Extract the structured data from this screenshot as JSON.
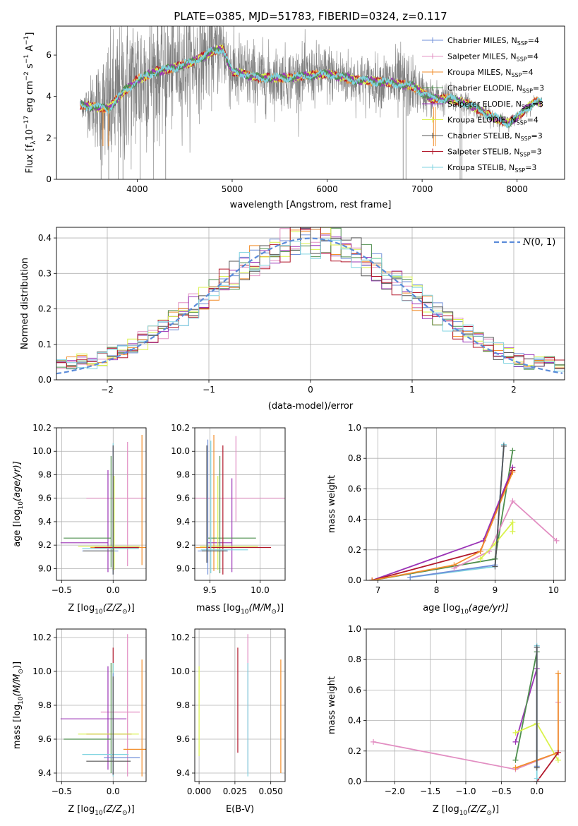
{
  "figure_title": "PLATE=0385, MJD=51783, FIBERID=0324, z=0.117",
  "colors": {
    "Chabrier MILES": "#6f8fd8",
    "Salpeter MILES": "#e28ec2",
    "Kroupa MILES": "#f28e2b",
    "Chabrier ELODIE": "#4e8f4e",
    "Salpeter ELODIE": "#9b34b6",
    "Kroupa ELODIE": "#d9f24a",
    "Chabrier STELIB": "#555555",
    "Salpeter STELIB": "#b2182b",
    "Kroupa STELIB": "#7fd3e0",
    "data": "#808080",
    "normal": "#5b8bd9"
  },
  "chart_data": [
    {
      "id": "spectrum",
      "type": "line",
      "title": "PLATE=0385, MJD=51783, FIBERID=0324, z=0.117",
      "xlabel": "wavelength [Angstrom, rest frame]",
      "ylabel": "Flux [f",
      "ylabel_parts": [
        "Flux [f",
        "λ",
        "10",
        "−17",
        " erg cm",
        "−2",
        " s",
        "−1",
        " A",
        "−1",
        "]"
      ],
      "xlim": [
        3150,
        8500
      ],
      "ylim": [
        0,
        7.4
      ],
      "xticks": [
        4000,
        5000,
        6000,
        7000,
        8000
      ],
      "yticks": [
        0,
        2,
        4,
        6
      ],
      "grid": false,
      "legend_position": "top-right",
      "data_series": {
        "name": "",
        "continuum": [
          [
            3400,
            3.6
          ],
          [
            3550,
            3.5
          ],
          [
            3700,
            3.4
          ],
          [
            3850,
            4.2
          ],
          [
            4000,
            4.8
          ],
          [
            4200,
            5.2
          ],
          [
            4400,
            5.4
          ],
          [
            4600,
            5.7
          ],
          [
            4800,
            6.2
          ],
          [
            4900,
            6.3
          ],
          [
            5000,
            5.2
          ],
          [
            5300,
            4.9
          ],
          [
            5600,
            4.9
          ],
          [
            6000,
            5.1
          ],
          [
            6300,
            4.8
          ],
          [
            6600,
            4.7
          ],
          [
            6900,
            4.5
          ],
          [
            7100,
            3.9
          ],
          [
            7300,
            3.9
          ],
          [
            7500,
            3.6
          ],
          [
            7700,
            3.1
          ],
          [
            7900,
            2.7
          ],
          [
            8050,
            3.2
          ],
          [
            8200,
            3.8
          ],
          [
            8260,
            3.7
          ]
        ],
        "noise_amplitude": [
          [
            3400,
            0.3
          ],
          [
            3700,
            2.8
          ],
          [
            4000,
            3.0
          ],
          [
            4500,
            2.2
          ],
          [
            5000,
            1.6
          ],
          [
            5500,
            1.2
          ],
          [
            6000,
            1.2
          ],
          [
            6500,
            1.0
          ],
          [
            6800,
            1.5
          ],
          [
            7000,
            0.8
          ],
          [
            7300,
            0.6
          ],
          [
            7500,
            0.4
          ],
          [
            8260,
            0.2
          ]
        ]
      },
      "model_series": [
        {
          "name": "Chabrier MILES",
          "nssp": "4"
        },
        {
          "name": "Salpeter MILES",
          "nssp": "4"
        },
        {
          "name": "Kroupa MILES",
          "nssp": "4"
        },
        {
          "name": "Chabrier ELODIE",
          "nssp": "3"
        },
        {
          "name": "Salpeter ELODIE",
          "nssp": "3"
        },
        {
          "name": "Kroupa ELODIE",
          "nssp": "4"
        },
        {
          "name": "Chabrier STELIB",
          "nssp": "3"
        },
        {
          "name": "Salpeter STELIB",
          "nssp": "3"
        },
        {
          "name": "Kroupa STELIB",
          "nssp": "3"
        }
      ],
      "legend_suffix_main": ", N",
      "legend_suffix_sub": "SSP",
      "legend_suffix_eq": "="
    },
    {
      "id": "residuals",
      "type": "histogram",
      "xlabel": "(data-model)/error",
      "ylabel": "Normed distribution",
      "xlim": [
        -2.5,
        2.5
      ],
      "ylim": [
        0,
        0.43
      ],
      "xticks": [
        -2,
        -1,
        0,
        1,
        2
      ],
      "yticks": [
        0.0,
        0.1,
        0.2,
        0.3,
        0.4
      ],
      "grid": true,
      "bin_width": 0.1,
      "legend_position": "top-right",
      "normal_curve": {
        "label_symbol": "N",
        "label_rest": "(0, 1)",
        "mean": 0,
        "sigma": 1
      }
    },
    {
      "id": "age_vs_Z",
      "type": "errorbar",
      "xlabel": "Z [log",
      "xlabel_parts": [
        "Z [log",
        "10",
        "(Z/Z",
        "⊙",
        ")]"
      ],
      "ylabel_parts": [
        "age  [log",
        "10",
        "(age/yr)]"
      ],
      "xlim": [
        -0.55,
        0.32
      ],
      "ylim": [
        8.9,
        10.2
      ],
      "xticks": [
        -0.5,
        0.0
      ],
      "yticks": [
        9.0,
        9.2,
        9.4,
        9.6,
        9.8,
        10.0,
        10.2
      ],
      "grid": true,
      "points": [
        {
          "series": "Salpeter MILES",
          "x": 0.14,
          "xerr": [
            0.4,
            0.26
          ],
          "y": 9.6,
          "yerr": [
            0.58,
            0.48
          ]
        },
        {
          "series": "Kroupa MILES",
          "x": 0.28,
          "xerr": [
            0.5,
            0.06
          ],
          "y": 9.18,
          "yerr": [
            0.15,
            0.96
          ]
        },
        {
          "series": "Salpeter ELODIE",
          "x": -0.05,
          "xerr": [
            0.46,
            0.0
          ],
          "y": 9.22,
          "yerr": [
            0.25,
            0.62
          ]
        },
        {
          "series": "Chabrier ELODIE",
          "x": -0.02,
          "xerr": [
            0.46,
            0.0
          ],
          "y": 9.26,
          "yerr": [
            0.25,
            0.7
          ]
        },
        {
          "series": "Kroupa ELODIE",
          "x": 0.01,
          "xerr": [
            0.35,
            0.25
          ],
          "y": 9.19,
          "yerr": [
            0.2,
            0.6
          ]
        },
        {
          "series": "Salpeter STELIB",
          "x": 0.0,
          "xerr": [
            0.18,
            0.25
          ],
          "y": 9.18,
          "yerr": [
            0.2,
            0.86
          ]
        },
        {
          "series": "Kroupa STELIB",
          "x": 0.0,
          "xerr": [
            0.3,
            0.25
          ],
          "y": 9.17,
          "yerr": [
            0.2,
            0.9
          ]
        },
        {
          "series": "Chabrier MILES",
          "x": 0.0,
          "xerr": [
            0.3,
            0.05
          ],
          "y": 9.15,
          "yerr": [
            0.2,
            0.9
          ]
        },
        {
          "series": "Chabrier STELIB",
          "x": 0.0,
          "xerr": [
            0.29,
            0.0
          ],
          "y": 9.15,
          "yerr": [
            0.2,
            0.9
          ]
        }
      ]
    },
    {
      "id": "age_vs_mass",
      "type": "errorbar",
      "xlabel_parts": [
        "mass [log",
        "10",
        "(M/M",
        "⊙",
        ")]"
      ],
      "xlim": [
        9.35,
        10.25
      ],
      "ylim": [
        8.9,
        10.2
      ],
      "xticks": [
        9.5,
        10.0
      ],
      "yticks": [
        9.0,
        9.2,
        9.4,
        9.6,
        9.8,
        10.0,
        10.2
      ],
      "grid": true,
      "points": [
        {
          "series": "Salpeter MILES",
          "x": 9.76,
          "xerr": [
            0.5,
            0.5
          ],
          "y": 9.6,
          "yerr": [
            0.2,
            0.53
          ]
        },
        {
          "series": "Kroupa MILES",
          "x": 9.54,
          "xerr": [
            0.18,
            0.18
          ],
          "y": 9.18,
          "yerr": [
            0.2,
            0.96
          ]
        },
        {
          "series": "Salpeter ELODIE",
          "x": 9.72,
          "xerr": [
            0.25,
            0.0
          ],
          "y": 9.22,
          "yerr": [
            0.25,
            0.55
          ]
        },
        {
          "series": "Chabrier ELODIE",
          "x": 9.6,
          "xerr": [
            0.12,
            0.36
          ],
          "y": 9.26,
          "yerr": [
            0.3,
            0.7
          ]
        },
        {
          "series": "Kroupa ELODIE",
          "x": 9.58,
          "xerr": [
            0.18,
            0.4
          ],
          "y": 9.19,
          "yerr": [
            0.2,
            0.6
          ]
        },
        {
          "series": "Salpeter STELIB",
          "x": 9.63,
          "xerr": [
            0.15,
            0.48
          ],
          "y": 9.18,
          "yerr": [
            0.23,
            0.87
          ]
        },
        {
          "series": "Kroupa STELIB",
          "x": 9.51,
          "xerr": [
            0.1,
            0.37
          ],
          "y": 9.16,
          "yerr": [
            0.2,
            0.93
          ]
        },
        {
          "series": "Chabrier MILES",
          "x": 9.48,
          "xerr": [
            0.1,
            0.2
          ],
          "y": 9.15,
          "yerr": [
            0.2,
            0.95
          ]
        },
        {
          "series": "Chabrier STELIB",
          "x": 9.47,
          "xerr": [
            0.05,
            0.2
          ],
          "y": 9.15,
          "yerr": [
            0.1,
            0.9
          ]
        }
      ]
    },
    {
      "id": "weight_vs_age",
      "type": "line",
      "xlabel_parts": [
        "age  [log",
        "10",
        "(age/yr)]"
      ],
      "ylabel": "mass weight",
      "xlim": [
        6.8,
        10.2
      ],
      "ylim": [
        0,
        1.0
      ],
      "xticks": [
        7,
        8,
        9,
        10
      ],
      "yticks": [
        0.0,
        0.2,
        0.4,
        0.6,
        0.8,
        1.0
      ],
      "grid": true,
      "series": [
        {
          "name": "Kroupa STELIB",
          "x": [
            7.55,
            9.0,
            9.15
          ],
          "y": [
            0.02,
            0.09,
            0.89
          ]
        },
        {
          "name": "Chabrier MILES",
          "x": [
            7.55,
            9.0,
            9.15
          ],
          "y": [
            0.02,
            0.1,
            0.88
          ]
        },
        {
          "name": "Chabrier ELODIE",
          "x": [
            6.9,
            9.0,
            9.3
          ],
          "y": [
            0.0,
            0.14,
            0.85
          ]
        },
        {
          "name": "Salpeter ELODIE",
          "x": [
            6.9,
            8.8,
            9.3
          ],
          "y": [
            0.0,
            0.26,
            0.74
          ]
        },
        {
          "name": "Salpeter STELIB",
          "x": [
            6.9,
            8.75,
            9.3
          ],
          "y": [
            0.0,
            0.19,
            0.72
          ]
        },
        {
          "name": "Kroupa MILES",
          "x": [
            6.9,
            8.3,
            8.75,
            9.3
          ],
          "y": [
            0.0,
            0.1,
            0.19,
            0.71
          ]
        },
        {
          "name": "Salpeter MILES",
          "x": [
            8.3,
            8.9,
            9.3,
            10.05
          ],
          "y": [
            0.08,
            0.19,
            0.52,
            0.26
          ]
        },
        {
          "name": "Kroupa ELODIE",
          "x": [
            8.75,
            9.0,
            9.3,
            9.3
          ],
          "y": [
            0.14,
            0.24,
            0.38,
            0.32
          ]
        },
        {
          "name": "Chabrier STELIB",
          "x": [
            9.0,
            9.15
          ],
          "y": [
            0.09,
            0.88
          ]
        }
      ]
    },
    {
      "id": "mass_vs_Z",
      "type": "errorbar",
      "xlabel_parts": [
        "Z [log",
        "10",
        "(Z/Z",
        "⊙",
        ")]"
      ],
      "ylabel_parts": [
        "mass [log",
        "10",
        "(M/M",
        "⊙",
        ")]"
      ],
      "xlim": [
        -0.55,
        0.32
      ],
      "ylim": [
        9.35,
        10.25
      ],
      "xticks": [
        -0.5,
        0.0
      ],
      "yticks": [
        9.4,
        9.6,
        9.8,
        10.0,
        10.2
      ],
      "grid": true,
      "points": [
        {
          "series": "Salpeter MILES",
          "x": 0.14,
          "xerr": [
            0.26,
            0.12
          ],
          "y": 9.76,
          "yerr": [
            0.38,
            0.46
          ]
        },
        {
          "series": "Salpeter ELODIE",
          "x": -0.05,
          "xerr": [
            0.46,
            0.18
          ],
          "y": 9.72,
          "yerr": [
            0.3,
            0.31
          ]
        },
        {
          "series": "Salpeter STELIB",
          "x": 0.0,
          "xerr": [
            0.26,
            0.18
          ],
          "y": 9.63,
          "yerr": [
            0.1,
            0.51
          ]
        },
        {
          "series": "Kroupa ELODIE",
          "x": 0.0,
          "xerr": [
            0.34,
            0.25
          ],
          "y": 9.63,
          "yerr": [
            0.13,
            0.42
          ]
        },
        {
          "series": "Chabrier ELODIE",
          "x": -0.02,
          "xerr": [
            0.46,
            0.0
          ],
          "y": 9.6,
          "yerr": [
            0.2,
            0.45
          ]
        },
        {
          "series": "Kroupa MILES",
          "x": 0.28,
          "xerr": [
            0.18,
            0.04
          ],
          "y": 9.54,
          "yerr": [
            0.16,
            0.53
          ]
        },
        {
          "series": "Kroupa STELIB",
          "x": 0.0,
          "xerr": [
            0.3,
            0.15
          ],
          "y": 9.51,
          "yerr": [
            0.13,
            0.54
          ]
        },
        {
          "series": "Chabrier MILES",
          "x": 0.0,
          "xerr": [
            0.09,
            0.26
          ],
          "y": 9.49,
          "yerr": [
            0.1,
            0.5
          ]
        },
        {
          "series": "Chabrier STELIB",
          "x": 0.0,
          "xerr": [
            0.26,
            0.17
          ],
          "y": 9.47,
          "yerr": [
            0.08,
            0.5
          ]
        }
      ]
    },
    {
      "id": "mass_vs_ebv",
      "type": "errorbar",
      "xlabel": "E(B-V)",
      "xlim": [
        -0.003,
        0.06
      ],
      "ylim": [
        9.35,
        10.25
      ],
      "xticks": [
        0.0,
        0.025,
        0.05
      ],
      "xtick_labels": [
        "0.000",
        "0.025",
        "0.050"
      ],
      "yticks": [
        9.4,
        9.6,
        9.8,
        10.0,
        10.2
      ],
      "grid": true,
      "points": [
        {
          "series": "Kroupa ELODIE",
          "x": 0.0,
          "y": 9.75,
          "yerr": [
            0.25,
            0.28
          ]
        },
        {
          "series": "Salpeter STELIB",
          "x": 0.027,
          "y": 9.8,
          "yerr": [
            0.28,
            0.34
          ]
        },
        {
          "series": "Salpeter MILES",
          "x": 0.034,
          "y": 9.8,
          "yerr": [
            0.4,
            0.42
          ]
        },
        {
          "series": "Kroupa STELIB",
          "x": 0.034,
          "y": 9.7,
          "yerr": [
            0.32,
            0.35
          ]
        },
        {
          "series": "Kroupa MILES",
          "x": 0.057,
          "y": 9.75,
          "yerr": [
            0.35,
            0.32
          ]
        }
      ]
    },
    {
      "id": "weight_vs_Z",
      "type": "line",
      "xlabel_parts": [
        "Z [log",
        "10",
        "(Z/Z",
        "⊙",
        ")]"
      ],
      "ylabel": "mass weight",
      "xlim": [
        -2.4,
        0.4
      ],
      "ylim": [
        0,
        1.0
      ],
      "xticks": [
        -2.0,
        -1.5,
        -1.0,
        -0.5,
        0.0
      ],
      "yticks": [
        0.0,
        0.2,
        0.4,
        0.6,
        0.8,
        1.0
      ],
      "grid": true,
      "series": [
        {
          "name": "Salpeter MILES",
          "x": [
            -2.3,
            -0.3,
            0.3,
            0.3
          ],
          "y": [
            0.26,
            0.08,
            0.19,
            0.52
          ]
        },
        {
          "name": "Salpeter ELODIE",
          "x": [
            -0.3,
            0.0
          ],
          "y": [
            0.26,
            0.74
          ]
        },
        {
          "name": "Chabrier ELODIE",
          "x": [
            -0.3,
            0.0
          ],
          "y": [
            0.14,
            0.85
          ]
        },
        {
          "name": "Kroupa ELODIE",
          "x": [
            -0.3,
            0.0,
            0.3
          ],
          "y": [
            0.32,
            0.38,
            0.14
          ]
        },
        {
          "name": "Kroupa MILES",
          "x": [
            -0.3,
            0.3,
            0.3
          ],
          "y": [
            0.09,
            0.19,
            0.71
          ]
        },
        {
          "name": "Salpeter STELIB",
          "x": [
            0.0,
            0.3
          ],
          "y": [
            0.0,
            0.19
          ]
        },
        {
          "name": "Kroupa STELIB",
          "x": [
            0.0,
            0.0
          ],
          "y": [
            0.02,
            0.89
          ]
        },
        {
          "name": "Chabrier MILES",
          "x": [
            0.0,
            0.0
          ],
          "y": [
            0.1,
            0.88
          ]
        },
        {
          "name": "Chabrier STELIB",
          "x": [
            0.0,
            0.0
          ],
          "y": [
            0.09,
            0.88
          ]
        }
      ]
    }
  ]
}
